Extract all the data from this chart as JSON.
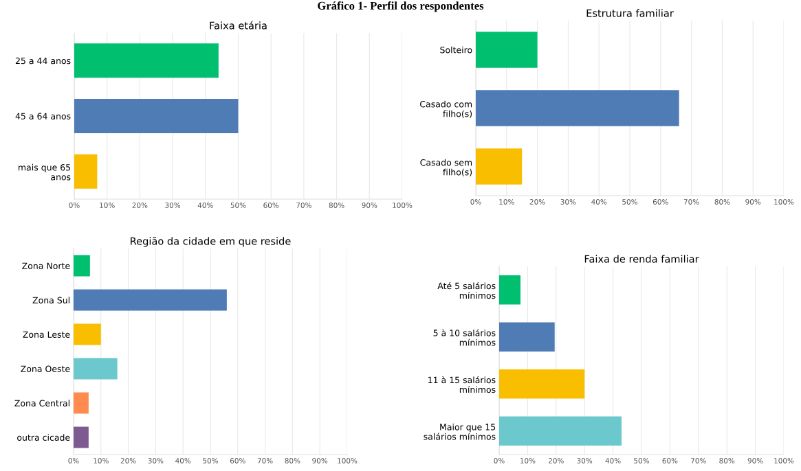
{
  "chart_data": [
    {
      "type": "bar",
      "orientation": "horizontal",
      "title": "Faixa etária",
      "annotations": [
        "Gráfico 1- Perfil dos respondentes"
      ],
      "categories": [
        "25 a 44 anos",
        "45 a 64 anos",
        "mais que 65\nanos"
      ],
      "values": [
        44,
        50,
        7
      ],
      "colors": [
        "#00bf6f",
        "#507cb6",
        "#f9be00"
      ],
      "xlim": [
        0,
        100
      ],
      "xticks": [
        {
          "value": 0,
          "label": "0%"
        },
        {
          "value": 10,
          "label": "10%"
        },
        {
          "value": 20,
          "label": "20%"
        },
        {
          "value": 30,
          "label": "30%"
        },
        {
          "value": 40,
          "label": "40%"
        },
        {
          "value": 50,
          "label": "50%"
        },
        {
          "value": 60,
          "label": "60%"
        },
        {
          "value": 70,
          "label": "70%"
        },
        {
          "value": 80,
          "label": "80%"
        },
        {
          "value": 90,
          "label": "90%"
        },
        {
          "value": 100,
          "label": "100%"
        }
      ],
      "grid": "x"
    },
    {
      "type": "bar",
      "orientation": "horizontal",
      "title": "Estrutura familiar",
      "categories": [
        "Solteiro",
        "Casado com\nfilho(s)",
        "Casado sem\nfilho(s)"
      ],
      "values": [
        20,
        66,
        15
      ],
      "colors": [
        "#00bf6f",
        "#507cb6",
        "#f9be00"
      ],
      "xlim": [
        0,
        100
      ],
      "xticks": [
        {
          "value": 0,
          "label": "0%"
        },
        {
          "value": 10,
          "label": "10%"
        },
        {
          "value": 20,
          "label": "20%"
        },
        {
          "value": 30,
          "label": "30%"
        },
        {
          "value": 40,
          "label": "40%"
        },
        {
          "value": 50,
          "label": "50%"
        },
        {
          "value": 60,
          "label": "60%"
        },
        {
          "value": 70,
          "label": "70%"
        },
        {
          "value": 80,
          "label": "80%"
        },
        {
          "value": 90,
          "label": "90%"
        },
        {
          "value": 100,
          "label": "100%"
        }
      ],
      "grid": "x"
    },
    {
      "type": "bar",
      "orientation": "horizontal",
      "title": "Região da cidade em que reside",
      "categories": [
        "Zona Norte",
        "Zona Sul",
        "Zona Leste",
        "Zona Oeste",
        "Zona Central",
        "outra cicade"
      ],
      "values": [
        6,
        56,
        10,
        16,
        5.5,
        5.5
      ],
      "colors": [
        "#00bf6f",
        "#507cb6",
        "#f9be00",
        "#6bc8cd",
        "#ff8b4f",
        "#7d5b90"
      ],
      "xlim": [
        0,
        100
      ],
      "xticks": [
        {
          "value": 0,
          "label": "0%"
        },
        {
          "value": 10,
          "label": "10%"
        },
        {
          "value": 20,
          "label": "20%"
        },
        {
          "value": 30,
          "label": "30%"
        },
        {
          "value": 40,
          "label": "40%"
        },
        {
          "value": 50,
          "label": "50%"
        },
        {
          "value": 60,
          "label": "60%"
        },
        {
          "value": 70,
          "label": "70%"
        },
        {
          "value": 80,
          "label": "80%"
        },
        {
          "value": 90,
          "label": "90%"
        },
        {
          "value": 100,
          "label": "100%"
        }
      ],
      "grid": "x"
    },
    {
      "type": "bar",
      "orientation": "horizontal",
      "title": "Faixa de renda familiar",
      "categories": [
        "Até 5 salários\nmínimos",
        "5 à 10 salários\nmínimos",
        "11 à 15 salários\nmínimos",
        "Maior que 15\nsalários mínimos"
      ],
      "values": [
        7.5,
        19.5,
        30,
        43
      ],
      "colors": [
        "#00bf6f",
        "#507cb6",
        "#f9be00",
        "#6bc8cd"
      ],
      "xlim": [
        0,
        100
      ],
      "xticks": [
        {
          "value": 0,
          "label": "0%"
        },
        {
          "value": 10,
          "label": "10%"
        },
        {
          "value": 20,
          "label": "20%"
        },
        {
          "value": 30,
          "label": "30%"
        },
        {
          "value": 40,
          "label": "40%"
        },
        {
          "value": 50,
          "label": "50%"
        },
        {
          "value": 60,
          "label": "60%"
        },
        {
          "value": 70,
          "label": "70%"
        },
        {
          "value": 80,
          "label": "80%"
        },
        {
          "value": 90,
          "label": "90%"
        },
        {
          "value": 100,
          "label": "100%"
        }
      ],
      "grid": "x"
    }
  ]
}
